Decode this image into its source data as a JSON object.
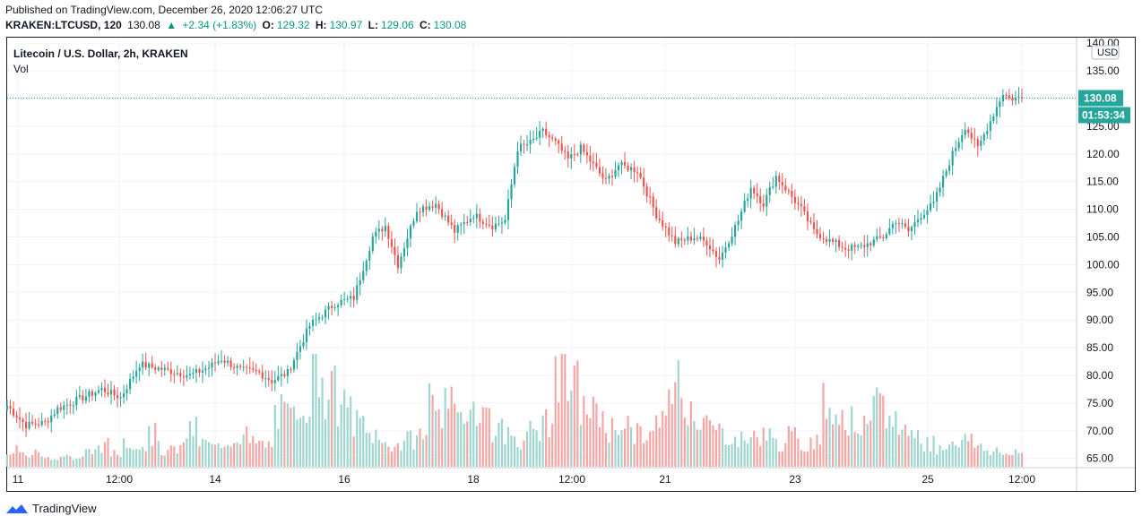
{
  "header": {
    "published": "Published on TradingView.com, December 26, 2020 12:06:27 UTC",
    "symbol": "KRAKEN:LTCUSD, 120",
    "last": "130.08",
    "change": "+2.34 (+1.83%)",
    "o_label": "O:",
    "o_value": "129.32",
    "h_label": "H:",
    "h_value": "130.97",
    "l_label": "L:",
    "l_value": "129.06",
    "c_label": "C:",
    "c_value": "130.08"
  },
  "legend": {
    "title": "Litecoin / U.S. Dollar, 2h, KRAKEN",
    "volume": "Vol"
  },
  "price_axis": {
    "currency": "USD",
    "last_price": "130.08",
    "countdown": "01:53:34",
    "tick_labels": [
      "140.00",
      "135.00",
      "130.00",
      "125.00",
      "120.00",
      "115.00",
      "110.00",
      "105.00",
      "100.00",
      "95.00",
      "90.00",
      "85.00",
      "80.00",
      "75.00",
      "70.00",
      "65.00"
    ]
  },
  "time_axis": {
    "tick_labels": [
      "11",
      "12:00",
      "14",
      "16",
      "18",
      "12:00",
      "21",
      "23",
      "25",
      "12:00"
    ]
  },
  "footer": {
    "brand": "TradingView"
  },
  "colors": {
    "up": "#26a69a",
    "down": "#ef5350",
    "up_vol": "#9ed6cf",
    "down_vol": "#f5a5a4",
    "price_line": "#26a69a",
    "grid": "#f0f3fa"
  },
  "chart_data": {
    "type": "candlestick",
    "title": "Litecoin / U.S. Dollar, 2h, KRAKEN",
    "ylim": [
      63.5,
      141
    ],
    "last_price": 130.08,
    "anchors": [
      [
        0,
        74.5
      ],
      [
        6,
        71
      ],
      [
        12,
        71.5
      ],
      [
        16,
        74
      ],
      [
        22,
        75.5
      ],
      [
        30,
        77.5
      ],
      [
        36,
        76
      ],
      [
        42,
        82
      ],
      [
        50,
        81
      ],
      [
        58,
        80
      ],
      [
        64,
        81.5
      ],
      [
        68,
        83
      ],
      [
        74,
        81
      ],
      [
        80,
        80.5
      ],
      [
        84,
        79
      ],
      [
        89,
        80.5
      ],
      [
        96,
        89
      ],
      [
        104,
        93
      ],
      [
        110,
        94
      ],
      [
        116,
        105
      ],
      [
        120,
        107
      ],
      [
        124,
        100
      ],
      [
        130,
        110
      ],
      [
        136,
        111
      ],
      [
        142,
        106
      ],
      [
        148,
        109
      ],
      [
        154,
        107
      ],
      [
        158,
        108
      ],
      [
        162,
        121
      ],
      [
        166,
        122
      ],
      [
        170,
        124
      ],
      [
        174,
        122
      ],
      [
        178,
        119
      ],
      [
        182,
        121
      ],
      [
        186,
        118
      ],
      [
        190,
        115
      ],
      [
        194,
        118
      ],
      [
        200,
        117
      ],
      [
        206,
        109
      ],
      [
        212,
        104
      ],
      [
        218,
        105
      ],
      [
        222,
        104
      ],
      [
        226,
        101
      ],
      [
        232,
        108
      ],
      [
        236,
        114
      ],
      [
        240,
        111
      ],
      [
        244,
        116
      ],
      [
        248,
        113
      ],
      [
        252,
        110
      ],
      [
        256,
        106
      ],
      [
        262,
        104
      ],
      [
        266,
        103
      ],
      [
        270,
        103
      ],
      [
        274,
        104
      ],
      [
        278,
        105
      ],
      [
        282,
        108
      ],
      [
        286,
        106
      ],
      [
        290,
        109
      ],
      [
        294,
        111
      ],
      [
        300,
        120
      ],
      [
        304,
        125
      ],
      [
        308,
        121
      ],
      [
        312,
        126
      ],
      [
        316,
        131
      ],
      [
        318,
        130
      ],
      [
        322,
        130.08
      ]
    ],
    "volume_levels": [
      0.18,
      0.1,
      0.12,
      0.09,
      0.1,
      0.08,
      0.14,
      0.2,
      0.12,
      0.25,
      0.2,
      0.3,
      0.15,
      0.17,
      0.35,
      0.22,
      0.18,
      0.25,
      0.3,
      0.22,
      0.2,
      0.5,
      0.45,
      0.65,
      0.9,
      0.7,
      0.55,
      0.4,
      0.3,
      0.22,
      0.2,
      0.25,
      0.3,
      0.65,
      0.55,
      0.45,
      0.6,
      0.5,
      0.35,
      0.3,
      0.25,
      0.35,
      0.4,
      0.9,
      0.75,
      0.55,
      0.5,
      0.35,
      0.42,
      0.3,
      0.3,
      0.4,
      0.8,
      0.6,
      0.45,
      0.35,
      0.3,
      0.25,
      0.28,
      0.3,
      0.22,
      0.28,
      0.2,
      0.25,
      0.6,
      0.48,
      0.42,
      0.35,
      0.55,
      0.45,
      0.35,
      0.3,
      0.22,
      0.18,
      0.25,
      0.25,
      0.2,
      0.15,
      0.12,
      0.12
    ]
  }
}
